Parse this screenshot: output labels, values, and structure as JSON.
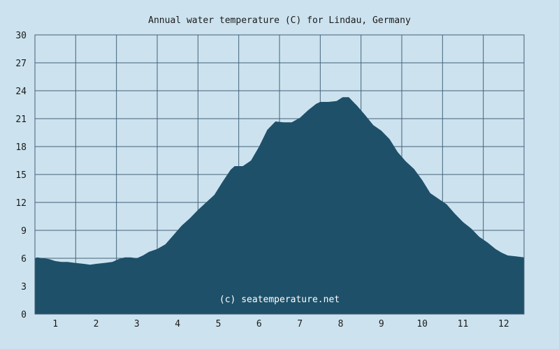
{
  "chart_data": {
    "type": "area",
    "title": "Annual water temperature (C) for Lindau, Germany",
    "watermark": "(c) seatemperature.net",
    "xlabel": "",
    "ylabel": "",
    "x_ticks": [
      "1",
      "2",
      "3",
      "4",
      "5",
      "6",
      "7",
      "8",
      "9",
      "10",
      "11",
      "12"
    ],
    "y_ticks": [
      "0",
      "3",
      "6",
      "9",
      "12",
      "15",
      "18",
      "21",
      "24",
      "27",
      "30"
    ],
    "ylim": [
      0,
      30
    ],
    "xlim": [
      0.5,
      12.5
    ],
    "grid": true,
    "colors": {
      "background": "#cce3ef",
      "fill": "#1e5069",
      "grid": "#44627a"
    },
    "series": [
      {
        "x": [
          0.5,
          0.55,
          0.7,
          0.85,
          1.0,
          1.15,
          1.3,
          1.5,
          1.7,
          1.85,
          2.0,
          2.2,
          2.4,
          2.55,
          2.7,
          2.85,
          3.0,
          3.15,
          3.3,
          3.5,
          3.7,
          3.9,
          4.1,
          4.3,
          4.5,
          4.7,
          4.9,
          5.1,
          5.3,
          5.4,
          5.6,
          5.8,
          6.0,
          6.2,
          6.4,
          6.6,
          6.8,
          7.0,
          7.2,
          7.4,
          7.5,
          7.7,
          7.9,
          8.05,
          8.2,
          8.4,
          8.6,
          8.8,
          9.0,
          9.2,
          9.4,
          9.6,
          9.8,
          10.0,
          10.2,
          10.4,
          10.6,
          10.8,
          11.0,
          11.2,
          11.4,
          11.6,
          11.8,
          11.95,
          12.1,
          12.3,
          12.5
        ],
        "values": [
          6.0,
          6.1,
          6.0,
          5.9,
          5.7,
          5.6,
          5.6,
          5.5,
          5.4,
          5.3,
          5.4,
          5.5,
          5.6,
          5.9,
          6.1,
          6.1,
          6.0,
          6.3,
          6.7,
          7.0,
          7.5,
          8.5,
          9.5,
          10.3,
          11.2,
          12.0,
          12.8,
          14.2,
          15.5,
          15.9,
          15.9,
          16.5,
          18.0,
          19.8,
          20.7,
          20.6,
          20.6,
          21.1,
          21.9,
          22.6,
          22.8,
          22.8,
          22.9,
          23.3,
          23.3,
          22.4,
          21.4,
          20.3,
          19.7,
          18.8,
          17.4,
          16.4,
          15.6,
          14.4,
          13.0,
          12.4,
          11.8,
          10.8,
          9.9,
          9.2,
          8.3,
          7.7,
          7.0,
          6.6,
          6.3,
          6.2,
          6.1
        ]
      }
    ]
  }
}
